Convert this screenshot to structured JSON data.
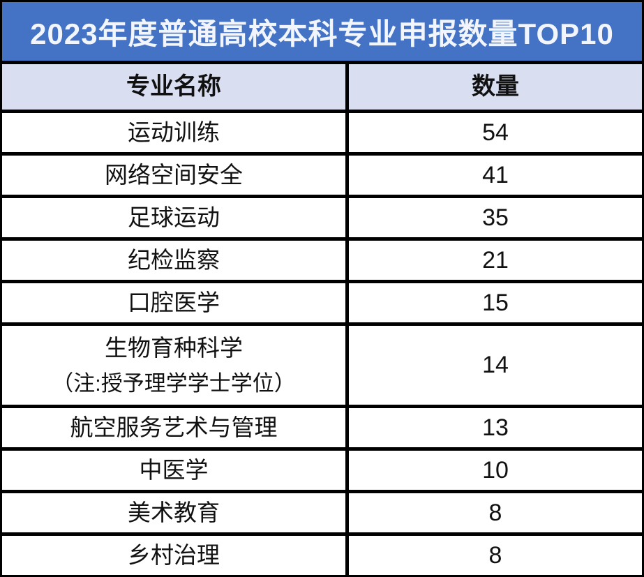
{
  "title": "2023年度普通高校本科专业申报数量TOP10",
  "colors": {
    "banner_bg": "#4472C4",
    "banner_text": "#F2F6FC",
    "header_bg": "#D9DEF1",
    "border": "#000000",
    "cell_bg": "#FFFFFF",
    "text": "#111111"
  },
  "table": {
    "columns": {
      "major": "专业名称",
      "count": "数量"
    },
    "rows": [
      {
        "name": "运动训练",
        "count": "54"
      },
      {
        "name": "网络空间安全",
        "count": "41"
      },
      {
        "name": "足球运动",
        "count": "35"
      },
      {
        "name": "纪检监察",
        "count": "21"
      },
      {
        "name": "口腔医学",
        "count": "15"
      },
      {
        "name": "生物育种科学",
        "note": "（注:授予理学学士学位）",
        "count": "14"
      },
      {
        "name": "航空服务艺术与管理",
        "count": "13"
      },
      {
        "name": "中医学",
        "count": "10"
      },
      {
        "name": "美术教育",
        "count": "8"
      },
      {
        "name": "乡村治理",
        "count": "8"
      }
    ]
  },
  "chart_data": {
    "type": "table",
    "title": "2023年度普通高校本科专业申报数量TOP10",
    "columns": [
      "专业名称",
      "数量"
    ],
    "categories": [
      "运动训练",
      "网络空间安全",
      "足球运动",
      "纪检监察",
      "口腔医学",
      "生物育种科学（注:授予理学学士学位）",
      "航空服务艺术与管理",
      "中医学",
      "美术教育",
      "乡村治理"
    ],
    "values": [
      54,
      41,
      35,
      21,
      15,
      14,
      13,
      10,
      8,
      8
    ],
    "layout": {
      "header_rows": 1,
      "grid": "on",
      "banner": "top"
    }
  }
}
